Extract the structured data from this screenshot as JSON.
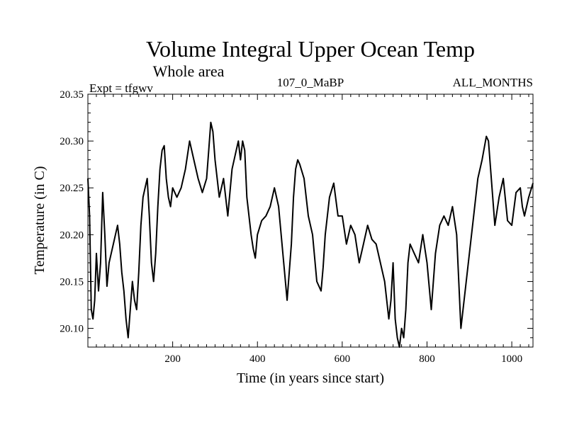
{
  "chart_data": {
    "type": "line",
    "title": "Volume Integral Upper Ocean Temp",
    "subtitle": "Whole area",
    "expt_label": "Expt = tfgwv",
    "run_label": "107_0_MaBP",
    "months_label": "ALL_MONTHS",
    "xlabel": "Time (in years since start)",
    "ylabel": "Temperature (in C)",
    "xlim": [
      0,
      1050
    ],
    "ylim": [
      20.08,
      20.35
    ],
    "x_ticks": [
      200,
      400,
      600,
      800,
      1000
    ],
    "x_tick_labels": [
      "200",
      "400",
      "600",
      "800",
      "1000"
    ],
    "y_ticks": [
      20.1,
      20.15,
      20.2,
      20.25,
      20.3,
      20.35
    ],
    "y_tick_labels": [
      "20.10",
      "20.15",
      "20.20",
      "20.25",
      "20.30",
      "20.35"
    ],
    "grid": false,
    "series": [
      {
        "name": "tfgwv",
        "x": [
          0,
          4,
          8,
          12,
          16,
          20,
          25,
          30,
          35,
          40,
          45,
          50,
          55,
          60,
          65,
          70,
          75,
          80,
          85,
          90,
          95,
          100,
          105,
          110,
          115,
          120,
          125,
          130,
          135,
          140,
          145,
          150,
          155,
          160,
          165,
          170,
          175,
          180,
          185,
          190,
          195,
          200,
          210,
          220,
          230,
          240,
          250,
          260,
          270,
          280,
          285,
          290,
          295,
          300,
          305,
          310,
          320,
          330,
          340,
          350,
          355,
          360,
          365,
          370,
          375,
          380,
          385,
          390,
          395,
          400,
          410,
          420,
          430,
          440,
          450,
          460,
          470,
          480,
          485,
          490,
          495,
          500,
          510,
          520,
          530,
          540,
          550,
          555,
          560,
          570,
          580,
          590,
          600,
          610,
          620,
          630,
          640,
          650,
          660,
          670,
          680,
          690,
          700,
          710,
          715,
          720,
          725,
          730,
          735,
          740,
          745,
          750,
          755,
          760,
          770,
          780,
          790,
          800,
          810,
          820,
          830,
          840,
          850,
          860,
          870,
          875,
          880,
          885,
          890,
          900,
          910,
          920,
          930,
          940,
          945,
          950,
          960,
          970,
          980,
          990,
          1000,
          1010,
          1020,
          1025,
          1030,
          1040,
          1050
        ],
        "values": [
          20.26,
          20.22,
          20.12,
          20.11,
          20.13,
          20.18,
          20.14,
          20.17,
          20.245,
          20.2,
          20.145,
          20.17,
          20.18,
          20.19,
          20.2,
          20.21,
          20.19,
          20.16,
          20.14,
          20.11,
          20.09,
          20.12,
          20.15,
          20.13,
          20.12,
          20.16,
          20.21,
          20.24,
          20.25,
          20.26,
          20.22,
          20.17,
          20.15,
          20.18,
          20.23,
          20.27,
          20.29,
          20.295,
          20.26,
          20.24,
          20.23,
          20.25,
          20.24,
          20.25,
          20.27,
          20.3,
          20.28,
          20.26,
          20.245,
          20.26,
          20.29,
          20.32,
          20.31,
          20.28,
          20.26,
          20.24,
          20.26,
          20.22,
          20.27,
          20.29,
          20.3,
          20.28,
          20.3,
          20.29,
          20.24,
          20.22,
          20.2,
          20.185,
          20.175,
          20.2,
          20.215,
          20.22,
          20.23,
          20.25,
          20.23,
          20.18,
          20.13,
          20.19,
          20.24,
          20.27,
          20.28,
          20.275,
          20.26,
          20.22,
          20.2,
          20.15,
          20.14,
          20.165,
          20.2,
          20.24,
          20.255,
          20.22,
          20.22,
          20.19,
          20.21,
          20.2,
          20.17,
          20.19,
          20.21,
          20.195,
          20.19,
          20.17,
          20.15,
          20.11,
          20.13,
          20.17,
          20.11,
          20.09,
          20.08,
          20.1,
          20.09,
          20.12,
          20.17,
          20.19,
          20.18,
          20.17,
          20.2,
          20.17,
          20.12,
          20.18,
          20.21,
          20.22,
          20.21,
          20.23,
          20.2,
          20.15,
          20.1,
          20.12,
          20.14,
          20.18,
          20.22,
          20.26,
          20.28,
          20.305,
          20.3,
          20.27,
          20.21,
          20.24,
          20.26,
          20.215,
          20.21,
          20.245,
          20.25,
          20.23,
          20.22,
          20.24,
          20.255
        ]
      }
    ]
  }
}
